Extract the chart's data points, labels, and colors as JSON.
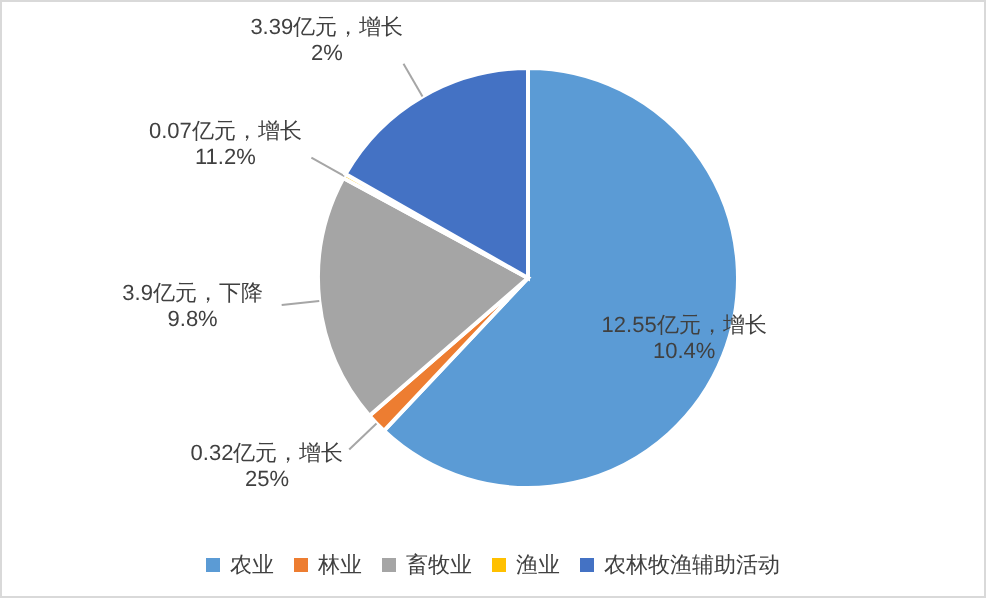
{
  "chart_data": {
    "type": "pie",
    "categories": [
      "农业",
      "林业",
      "畜牧业",
      "渔业",
      "农林牧渔辅助活动"
    ],
    "values": [
      12.55,
      0.32,
      3.9,
      0.07,
      3.39
    ],
    "colors": [
      "#5b9bd5",
      "#ed7d31",
      "#a5a5a5",
      "#ffc000",
      "#4472c4"
    ],
    "value_labels": [
      "12.55亿元，增长10.4%",
      "0.32亿元，增长25%",
      "3.9亿元，下降9.8%",
      "0.07亿元，增长11.2%",
      "3.39亿元，增长2%"
    ],
    "legend": "bottom"
  }
}
